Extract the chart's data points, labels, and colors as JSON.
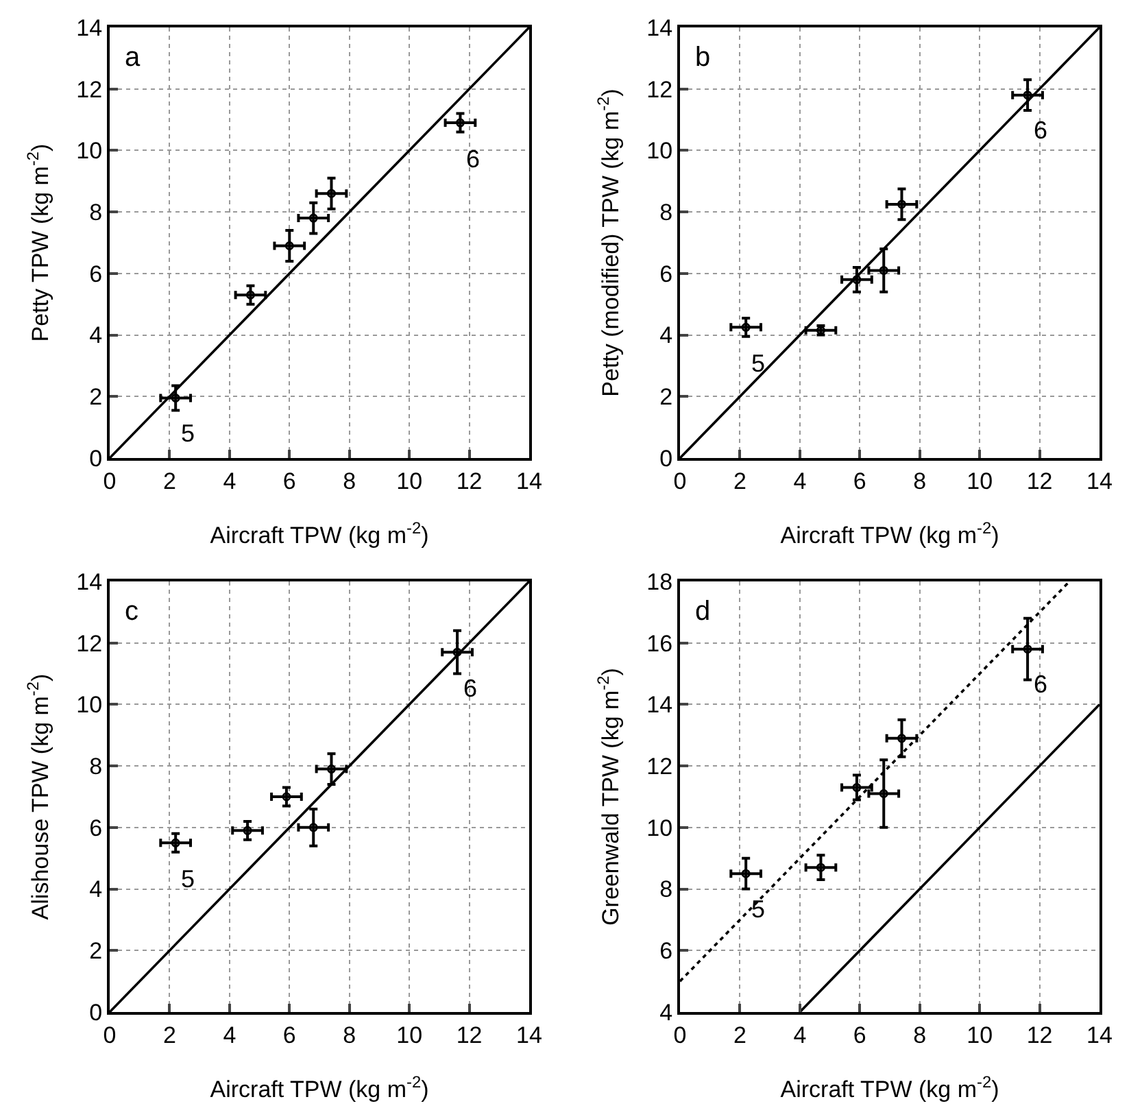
{
  "chart_data": [
    {
      "type": "scatter",
      "xlabel": "Aircraft TPW (kg m$^{-2}$)",
      "ylabel": "Petty TPW (kg m$^{-2}$)",
      "xlim": [
        0,
        14
      ],
      "ylim": [
        0,
        14
      ],
      "xticks": [
        0,
        2,
        4,
        6,
        8,
        10,
        12,
        14
      ],
      "yticks": [
        0,
        2,
        4,
        6,
        8,
        10,
        12,
        14
      ],
      "grid": true,
      "annotations": [
        "a",
        {
          "text": "5",
          "x": 2.2,
          "y": 1.95
        },
        {
          "text": "6",
          "x": 11.7,
          "y": 10.9
        }
      ],
      "series": [
        {
          "color": "#000000",
          "marker": "circle",
          "x": [
            2.2,
            4.7,
            6.0,
            6.8,
            7.4,
            11.7
          ],
          "values": [
            1.95,
            5.3,
            6.9,
            7.8,
            8.6,
            10.9
          ],
          "errors": [
            0.4,
            0.3,
            0.5,
            0.5,
            0.5,
            0.3
          ],
          "xerrors": [
            0.5,
            0.5,
            0.5,
            0.5,
            0.5,
            0.5
          ]
        },
        {
          "type": "line",
          "color": "#000000",
          "line_style": "solid",
          "x": [
            0,
            14
          ],
          "values": [
            0,
            14
          ]
        }
      ]
    },
    {
      "type": "scatter",
      "xlabel": "Aircraft TPW (kg m$^{-2}$)",
      "ylabel": "Petty (modified) TPW (kg m$^{-2}$)",
      "xlim": [
        0,
        14
      ],
      "ylim": [
        0,
        14
      ],
      "xticks": [
        0,
        2,
        4,
        6,
        8,
        10,
        12,
        14
      ],
      "yticks": [
        0,
        2,
        4,
        6,
        8,
        10,
        12,
        14
      ],
      "grid": true,
      "annotations": [
        "b",
        {
          "text": "5",
          "x": 2.2,
          "y": 4.25
        },
        {
          "text": "6",
          "x": 11.6,
          "y": 11.8
        }
      ],
      "series": [
        {
          "color": "#000000",
          "marker": "circle",
          "x": [
            2.2,
            4.7,
            5.9,
            6.8,
            7.4,
            11.6
          ],
          "values": [
            4.25,
            4.15,
            5.8,
            6.1,
            8.25,
            11.8
          ],
          "errors": [
            0.3,
            0.15,
            0.4,
            0.7,
            0.5,
            0.5
          ],
          "xerrors": [
            0.5,
            0.5,
            0.5,
            0.5,
            0.5,
            0.5
          ]
        },
        {
          "type": "line",
          "color": "#000000",
          "line_style": "solid",
          "x": [
            0,
            14
          ],
          "values": [
            0,
            14
          ]
        }
      ]
    },
    {
      "type": "scatter",
      "xlabel": "Aircraft TPW (kg m$^{-2}$)",
      "ylabel": "Alishouse TPW (kg m$^{-2}$)",
      "xlim": [
        0,
        14
      ],
      "ylim": [
        0,
        14
      ],
      "xticks": [
        0,
        2,
        4,
        6,
        8,
        10,
        12,
        14
      ],
      "yticks": [
        0,
        2,
        4,
        6,
        8,
        10,
        12,
        14
      ],
      "grid": true,
      "annotations": [
        "c",
        {
          "text": "5",
          "x": 2.2,
          "y": 5.5
        },
        {
          "text": "6",
          "x": 11.6,
          "y": 11.7
        }
      ],
      "series": [
        {
          "color": "#000000",
          "marker": "circle",
          "x": [
            2.2,
            4.6,
            5.9,
            6.8,
            7.4,
            11.6
          ],
          "values": [
            5.5,
            5.9,
            7.0,
            6.0,
            7.9,
            11.7
          ],
          "errors": [
            0.3,
            0.3,
            0.3,
            0.6,
            0.5,
            0.7
          ],
          "xerrors": [
            0.5,
            0.5,
            0.5,
            0.5,
            0.5,
            0.5
          ]
        },
        {
          "type": "line",
          "color": "#000000",
          "line_style": "solid",
          "x": [
            0,
            14
          ],
          "values": [
            0,
            14
          ]
        }
      ]
    },
    {
      "type": "scatter",
      "xlabel": "Aircraft TPW (kg m$^{-2}$)",
      "ylabel": "Greenwald TPW (kg m$^{-2}$)",
      "xlim": [
        0,
        14
      ],
      "ylim": [
        4,
        18
      ],
      "xticks": [
        0,
        2,
        4,
        6,
        8,
        10,
        12,
        14
      ],
      "yticks": [
        4,
        6,
        8,
        10,
        12,
        14,
        16,
        18
      ],
      "grid": true,
      "annotations": [
        "d",
        {
          "text": "5",
          "x": 2.2,
          "y": 8.5
        },
        {
          "text": "6",
          "x": 11.6,
          "y": 15.8
        }
      ],
      "series": [
        {
          "color": "#000000",
          "marker": "circle",
          "x": [
            2.2,
            4.7,
            5.9,
            6.8,
            7.4,
            11.6
          ],
          "values": [
            8.5,
            8.7,
            11.3,
            11.1,
            12.9,
            15.8
          ],
          "errors": [
            0.5,
            0.4,
            0.4,
            1.1,
            0.6,
            1.0
          ],
          "xerrors": [
            0.5,
            0.5,
            0.5,
            0.5,
            0.5,
            0.5
          ]
        },
        {
          "type": "line",
          "color": "#000000",
          "line_style": "solid",
          "x": [
            4,
            14
          ],
          "values": [
            4,
            14
          ]
        },
        {
          "type": "line",
          "color": "#000000",
          "line_style": "dotted",
          "x": [
            0,
            13
          ],
          "values": [
            5,
            18
          ]
        }
      ]
    }
  ]
}
